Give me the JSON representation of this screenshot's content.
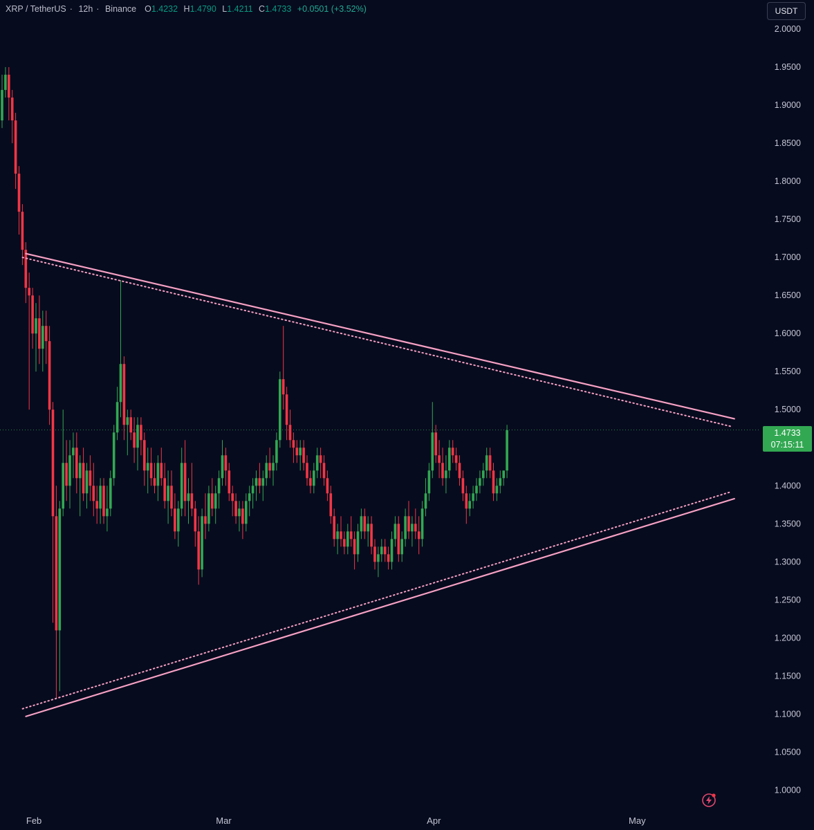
{
  "header": {
    "symbol": "XRP / TetherUS",
    "interval": "12h",
    "exchange": "Binance",
    "open_label": "O",
    "open": "1.4232",
    "high_label": "H",
    "high": "1.4790",
    "low_label": "L",
    "low": "1.4211",
    "close_label": "C",
    "close": "1.4733",
    "change": "+0.0501 (+3.52%)",
    "currency_button": "USDT"
  },
  "last_price": {
    "value": "1.4733",
    "countdown": "07:15:11"
  },
  "colors": {
    "background": "#070b1e",
    "up": "#32a852",
    "down": "#f23645",
    "trendline": "#f7a1c4",
    "axis_text": "#c3c6d4",
    "price_tag": "#32a852"
  },
  "icons": {
    "bolt": "lightning-bolt-icon"
  },
  "chart_data": {
    "type": "candlestick",
    "timeframe": "12h",
    "ylim": [
      0.975,
      2.02
    ],
    "y_ticks": [
      "2.0000",
      "1.9500",
      "1.9000",
      "1.8500",
      "1.8000",
      "1.7500",
      "1.7000",
      "1.6500",
      "1.6000",
      "1.5500",
      "1.5000",
      "1.4500",
      "1.4000",
      "1.3500",
      "1.3000",
      "1.2500",
      "1.2000",
      "1.1500",
      "1.1000",
      "1.0500",
      "1.0000"
    ],
    "x_labels": [
      {
        "label": "Feb",
        "bar": 9
      },
      {
        "label": "Mar",
        "bar": 65
      },
      {
        "label": "Apr",
        "bar": 127
      },
      {
        "label": "May",
        "bar": 187
      }
    ],
    "trendlines": [
      {
        "name": "upper",
        "from": {
          "bar": 5,
          "price": 1.705
        },
        "to": {
          "bar": 212,
          "price": 1.488
        }
      },
      {
        "name": "upper-dotted",
        "from": {
          "bar": 4,
          "price": 1.7
        },
        "to": {
          "bar": 211,
          "price": 1.478
        }
      },
      {
        "name": "lower",
        "from": {
          "bar": 5,
          "price": 1.097
        },
        "to": {
          "bar": 212,
          "price": 1.383
        }
      },
      {
        "name": "lower-dotted",
        "from": {
          "bar": 4,
          "price": 1.107
        },
        "to": {
          "bar": 211,
          "price": 1.392
        }
      }
    ],
    "last_price_line": 1.4733,
    "candles": [
      [
        1.88,
        1.94,
        1.87,
        1.92
      ],
      [
        1.92,
        1.95,
        1.91,
        1.94
      ],
      [
        1.94,
        1.95,
        1.88,
        1.91
      ],
      [
        1.91,
        1.92,
        1.85,
        1.88
      ],
      [
        1.88,
        1.89,
        1.79,
        1.81
      ],
      [
        1.81,
        1.82,
        1.73,
        1.76
      ],
      [
        1.76,
        1.77,
        1.69,
        1.71
      ],
      [
        1.71,
        1.72,
        1.64,
        1.66
      ],
      [
        1.66,
        1.68,
        1.5,
        1.65
      ],
      [
        1.65,
        1.66,
        1.58,
        1.6
      ],
      [
        1.6,
        1.64,
        1.55,
        1.62
      ],
      [
        1.62,
        1.65,
        1.56,
        1.58
      ],
      [
        1.58,
        1.63,
        1.55,
        1.61
      ],
      [
        1.61,
        1.63,
        1.56,
        1.59
      ],
      [
        1.59,
        1.61,
        1.48,
        1.5
      ],
      [
        1.5,
        1.51,
        1.22,
        1.36
      ],
      [
        1.36,
        1.4,
        1.12,
        1.21
      ],
      [
        1.21,
        1.38,
        1.13,
        1.37
      ],
      [
        1.37,
        1.5,
        1.36,
        1.43
      ],
      [
        1.43,
        1.46,
        1.38,
        1.4
      ],
      [
        1.4,
        1.46,
        1.37,
        1.44
      ],
      [
        1.44,
        1.47,
        1.41,
        1.45
      ],
      [
        1.45,
        1.47,
        1.39,
        1.41
      ],
      [
        1.41,
        1.44,
        1.36,
        1.43
      ],
      [
        1.43,
        1.45,
        1.38,
        1.39
      ],
      [
        1.39,
        1.43,
        1.37,
        1.42
      ],
      [
        1.42,
        1.44,
        1.38,
        1.4
      ],
      [
        1.4,
        1.43,
        1.36,
        1.38
      ],
      [
        1.38,
        1.4,
        1.35,
        1.37
      ],
      [
        1.37,
        1.41,
        1.35,
        1.4
      ],
      [
        1.4,
        1.41,
        1.35,
        1.36
      ],
      [
        1.36,
        1.4,
        1.34,
        1.37
      ],
      [
        1.37,
        1.42,
        1.36,
        1.41
      ],
      [
        1.41,
        1.48,
        1.4,
        1.47
      ],
      [
        1.47,
        1.53,
        1.46,
        1.51
      ],
      [
        1.51,
        1.67,
        1.49,
        1.56
      ],
      [
        1.56,
        1.57,
        1.46,
        1.48
      ],
      [
        1.48,
        1.5,
        1.44,
        1.49
      ],
      [
        1.49,
        1.5,
        1.46,
        1.47
      ],
      [
        1.47,
        1.49,
        1.43,
        1.45
      ],
      [
        1.45,
        1.49,
        1.42,
        1.48
      ],
      [
        1.48,
        1.49,
        1.44,
        1.46
      ],
      [
        1.46,
        1.47,
        1.4,
        1.42
      ],
      [
        1.42,
        1.45,
        1.39,
        1.43
      ],
      [
        1.43,
        1.45,
        1.4,
        1.41
      ],
      [
        1.41,
        1.43,
        1.39,
        1.4
      ],
      [
        1.4,
        1.44,
        1.38,
        1.43
      ],
      [
        1.43,
        1.45,
        1.4,
        1.41
      ],
      [
        1.41,
        1.43,
        1.37,
        1.38
      ],
      [
        1.38,
        1.42,
        1.35,
        1.4
      ],
      [
        1.4,
        1.42,
        1.36,
        1.37
      ],
      [
        1.37,
        1.39,
        1.33,
        1.34
      ],
      [
        1.34,
        1.38,
        1.32,
        1.37
      ],
      [
        1.37,
        1.45,
        1.36,
        1.43
      ],
      [
        1.43,
        1.46,
        1.36,
        1.38
      ],
      [
        1.38,
        1.41,
        1.35,
        1.39
      ],
      [
        1.39,
        1.43,
        1.36,
        1.37
      ],
      [
        1.37,
        1.38,
        1.32,
        1.34
      ],
      [
        1.34,
        1.36,
        1.27,
        1.29
      ],
      [
        1.29,
        1.37,
        1.28,
        1.36
      ],
      [
        1.36,
        1.39,
        1.33,
        1.35
      ],
      [
        1.35,
        1.4,
        1.34,
        1.39
      ],
      [
        1.39,
        1.41,
        1.36,
        1.37
      ],
      [
        1.37,
        1.4,
        1.35,
        1.39
      ],
      [
        1.39,
        1.42,
        1.37,
        1.41
      ],
      [
        1.41,
        1.46,
        1.4,
        1.44
      ],
      [
        1.44,
        1.45,
        1.4,
        1.42
      ],
      [
        1.42,
        1.43,
        1.38,
        1.39
      ],
      [
        1.39,
        1.4,
        1.36,
        1.38
      ],
      [
        1.38,
        1.39,
        1.35,
        1.36
      ],
      [
        1.36,
        1.38,
        1.34,
        1.37
      ],
      [
        1.37,
        1.38,
        1.33,
        1.35
      ],
      [
        1.35,
        1.39,
        1.34,
        1.38
      ],
      [
        1.38,
        1.4,
        1.36,
        1.39
      ],
      [
        1.39,
        1.41,
        1.37,
        1.4
      ],
      [
        1.4,
        1.42,
        1.38,
        1.41
      ],
      [
        1.41,
        1.43,
        1.39,
        1.4
      ],
      [
        1.4,
        1.42,
        1.38,
        1.41
      ],
      [
        1.41,
        1.44,
        1.4,
        1.43
      ],
      [
        1.43,
        1.45,
        1.41,
        1.42
      ],
      [
        1.42,
        1.44,
        1.4,
        1.43
      ],
      [
        1.43,
        1.47,
        1.42,
        1.46
      ],
      [
        1.46,
        1.55,
        1.45,
        1.54
      ],
      [
        1.54,
        1.61,
        1.5,
        1.52
      ],
      [
        1.52,
        1.53,
        1.46,
        1.48
      ],
      [
        1.48,
        1.5,
        1.45,
        1.46
      ],
      [
        1.46,
        1.47,
        1.43,
        1.45
      ],
      [
        1.45,
        1.46,
        1.43,
        1.44
      ],
      [
        1.44,
        1.46,
        1.42,
        1.45
      ],
      [
        1.45,
        1.46,
        1.42,
        1.43
      ],
      [
        1.43,
        1.44,
        1.4,
        1.41
      ],
      [
        1.41,
        1.42,
        1.39,
        1.4
      ],
      [
        1.4,
        1.43,
        1.39,
        1.42
      ],
      [
        1.42,
        1.45,
        1.41,
        1.44
      ],
      [
        1.44,
        1.45,
        1.41,
        1.43
      ],
      [
        1.43,
        1.44,
        1.4,
        1.41
      ],
      [
        1.41,
        1.42,
        1.38,
        1.39
      ],
      [
        1.39,
        1.4,
        1.35,
        1.36
      ],
      [
        1.36,
        1.37,
        1.32,
        1.33
      ],
      [
        1.33,
        1.35,
        1.31,
        1.34
      ],
      [
        1.34,
        1.36,
        1.32,
        1.33
      ],
      [
        1.33,
        1.34,
        1.31,
        1.32
      ],
      [
        1.32,
        1.35,
        1.31,
        1.34
      ],
      [
        1.34,
        1.36,
        1.32,
        1.33
      ],
      [
        1.33,
        1.34,
        1.29,
        1.31
      ],
      [
        1.31,
        1.35,
        1.3,
        1.34
      ],
      [
        1.34,
        1.37,
        1.33,
        1.36
      ],
      [
        1.36,
        1.37,
        1.33,
        1.34
      ],
      [
        1.34,
        1.36,
        1.32,
        1.35
      ],
      [
        1.35,
        1.36,
        1.31,
        1.32
      ],
      [
        1.32,
        1.33,
        1.29,
        1.3
      ],
      [
        1.3,
        1.32,
        1.28,
        1.31
      ],
      [
        1.31,
        1.33,
        1.3,
        1.32
      ],
      [
        1.32,
        1.33,
        1.3,
        1.31
      ],
      [
        1.31,
        1.32,
        1.29,
        1.3
      ],
      [
        1.3,
        1.34,
        1.29,
        1.33
      ],
      [
        1.33,
        1.36,
        1.32,
        1.35
      ],
      [
        1.35,
        1.36,
        1.3,
        1.31
      ],
      [
        1.31,
        1.34,
        1.3,
        1.33
      ],
      [
        1.33,
        1.37,
        1.32,
        1.36
      ],
      [
        1.36,
        1.38,
        1.33,
        1.34
      ],
      [
        1.34,
        1.36,
        1.32,
        1.35
      ],
      [
        1.35,
        1.37,
        1.33,
        1.34
      ],
      [
        1.34,
        1.36,
        1.31,
        1.33
      ],
      [
        1.33,
        1.38,
        1.32,
        1.37
      ],
      [
        1.37,
        1.41,
        1.36,
        1.39
      ],
      [
        1.39,
        1.43,
        1.38,
        1.42
      ],
      [
        1.42,
        1.51,
        1.41,
        1.47
      ],
      [
        1.47,
        1.48,
        1.43,
        1.44
      ],
      [
        1.44,
        1.46,
        1.41,
        1.43
      ],
      [
        1.43,
        1.45,
        1.4,
        1.41
      ],
      [
        1.41,
        1.44,
        1.39,
        1.42
      ],
      [
        1.42,
        1.46,
        1.41,
        1.45
      ],
      [
        1.45,
        1.46,
        1.43,
        1.44
      ],
      [
        1.44,
        1.45,
        1.42,
        1.43
      ],
      [
        1.43,
        1.44,
        1.4,
        1.41
      ],
      [
        1.41,
        1.42,
        1.38,
        1.39
      ],
      [
        1.39,
        1.4,
        1.35,
        1.37
      ],
      [
        1.37,
        1.39,
        1.36,
        1.38
      ],
      [
        1.38,
        1.4,
        1.37,
        1.39
      ],
      [
        1.39,
        1.41,
        1.38,
        1.4
      ],
      [
        1.4,
        1.42,
        1.39,
        1.41
      ],
      [
        1.41,
        1.43,
        1.4,
        1.42
      ],
      [
        1.42,
        1.45,
        1.41,
        1.44
      ],
      [
        1.44,
        1.45,
        1.41,
        1.42
      ],
      [
        1.42,
        1.43,
        1.38,
        1.39
      ],
      [
        1.39,
        1.41,
        1.38,
        1.4
      ],
      [
        1.4,
        1.42,
        1.39,
        1.41
      ],
      [
        1.41,
        1.42,
        1.4,
        1.42
      ],
      [
        1.42,
        1.48,
        1.41,
        1.473
      ]
    ]
  }
}
